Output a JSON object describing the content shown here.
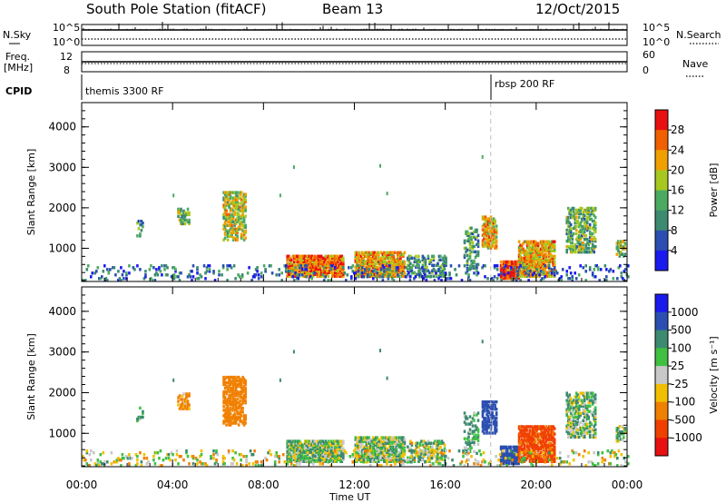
{
  "header": {
    "station": "South Pole Station (fitACF)",
    "beam": "Beam 13",
    "date": "12/Oct/2015"
  },
  "top_panels": {
    "nsky_label": "N.Sky",
    "nsky_ticks": [
      "10^5",
      "10^0"
    ],
    "nsearch_label": "N.Search",
    "nsearch_ticks": [
      "10^5",
      "10^0"
    ],
    "freq_label_1": "Freq.",
    "freq_label_2": "[MHz]",
    "freq_ticks": [
      "12",
      "8"
    ],
    "nave_label": "Nave",
    "nave_ticks": [
      "60",
      "0"
    ],
    "cpid_label": "CPID",
    "cpid_segments": [
      "themis 3300 RF",
      "rbsp 200 RF"
    ]
  },
  "chart_data": [
    {
      "type": "heatmap",
      "title": "",
      "ylabel": "Slant Range [km]",
      "xlabel": "",
      "x_ticks": [
        "00:00",
        "04:00",
        "08:00",
        "12:00",
        "16:00",
        "20:00",
        "00:00"
      ],
      "y_ticks": [
        "1000",
        "2000",
        "3000",
        "4000"
      ],
      "xlim_hours": [
        0,
        24
      ],
      "ylim_km": [
        180,
        4600
      ],
      "colorbar": {
        "label": "Power [dB]",
        "ticks": [
          "4",
          "8",
          "12",
          "16",
          "20",
          "24",
          "28"
        ],
        "colors": [
          "#1a1aee",
          "#2b4fb0",
          "#3c8a70",
          "#4caa60",
          "#a8c820",
          "#f0a000",
          "#f06000",
          "#e81010"
        ]
      }
    },
    {
      "type": "heatmap",
      "title": "",
      "ylabel": "Slant Range [km]",
      "xlabel": "Time UT",
      "x_ticks": [
        "00:00",
        "04:00",
        "08:00",
        "12:00",
        "16:00",
        "20:00",
        "00:00"
      ],
      "y_ticks": [
        "1000",
        "2000",
        "3000",
        "4000"
      ],
      "xlim_hours": [
        0,
        24
      ],
      "ylim_km": [
        180,
        4600
      ],
      "colorbar": {
        "label": "Velocity [m s⁻¹]",
        "ticks": [
          "1000",
          "500",
          "100",
          "25",
          "-25",
          "-100",
          "-500",
          "-1000"
        ],
        "colors": [
          "#1a1aee",
          "#2b4fb0",
          "#3c8a70",
          "#40c040",
          "#c8c8c8",
          "#f0c000",
          "#f08000",
          "#f04000",
          "#e81010"
        ]
      }
    }
  ]
}
